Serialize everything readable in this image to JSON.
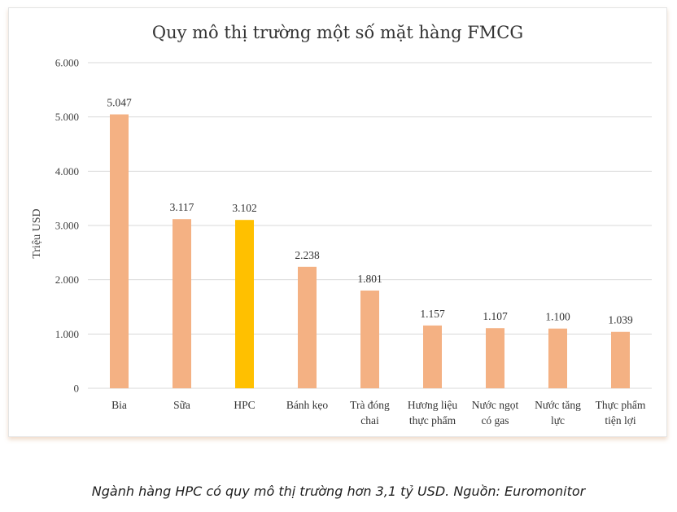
{
  "chart_data": {
    "type": "bar",
    "title": "Quy mô thị trường một số mặt hàng FMCG",
    "ylabel": "Triệu USD",
    "xlabel": "",
    "ylim": [
      0,
      6000
    ],
    "yticks": [
      0,
      1000,
      2000,
      3000,
      4000,
      5000,
      6000
    ],
    "ytick_labels": [
      "0",
      "1.000",
      "2.000",
      "3.000",
      "4.000",
      "5.000",
      "6.000"
    ],
    "grid": true,
    "legend": "none",
    "categories": [
      [
        "Bia"
      ],
      [
        "Sữa"
      ],
      [
        "HPC"
      ],
      [
        "Bánh kẹo"
      ],
      [
        "Trà đóng",
        "chai"
      ],
      [
        "Hương liệu",
        "thực phẩm"
      ],
      [
        "Nước ngọt",
        "có gas"
      ],
      [
        "Nước tăng",
        "lực"
      ],
      [
        "Thực phẩm",
        "tiện lợi"
      ]
    ],
    "values": [
      5047,
      3117,
      3102,
      2238,
      1801,
      1157,
      1107,
      1100,
      1039
    ],
    "value_labels": [
      "5.047",
      "3.117",
      "3.102",
      "2.238",
      "1.801",
      "1.157",
      "1.107",
      "1.100",
      "1.039"
    ],
    "colors": {
      "default": "#f4b183",
      "highlight": "#ffc000",
      "highlight_index": 2
    }
  },
  "caption": "Ngành hàng HPC có quy mô thị trường hơn 3,1 tỷ USD. Nguồn: Euromonitor"
}
